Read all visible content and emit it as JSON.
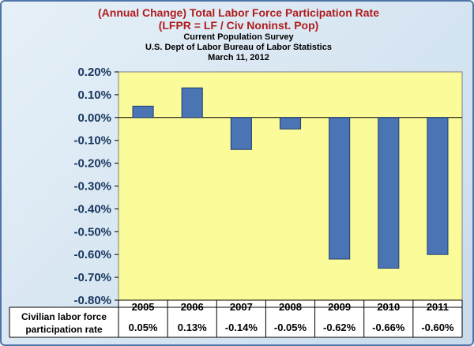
{
  "header": {
    "title_line1": "(Annual Change) Total Labor Force Participation Rate",
    "title_line2": "(LFPR = LF / Civ Noninst. Pop)",
    "subtitle_line1": "Current Population Survey",
    "subtitle_line2": "U.S. Dept of Labor Bureau of Labor Statistics",
    "subtitle_line3": "March 11, 2012"
  },
  "colors": {
    "plot_background": "#fbfb9a",
    "bar_fill": "#4a74b4",
    "bar_stroke": "#1f3f73",
    "title_red": "#b01c1c",
    "axis_label_blue": "#17375e"
  },
  "chart_data": {
    "type": "bar",
    "title": "(Annual Change) Total Labor Force Participation Rate",
    "categories": [
      "2005",
      "2006",
      "2007",
      "2008",
      "2009",
      "2010",
      "2011"
    ],
    "series": [
      {
        "name": "Civilian labor force participation rate",
        "values": [
          0.05,
          0.13,
          -0.14,
          -0.05,
          -0.62,
          -0.66,
          -0.6
        ],
        "value_labels": [
          "0.05%",
          "0.13%",
          "-0.14%",
          "-0.05%",
          "-0.62%",
          "-0.66%",
          "-0.60%"
        ]
      }
    ],
    "ylim": [
      -0.8,
      0.2
    ],
    "yticks": [
      0.2,
      0.1,
      0.0,
      -0.1,
      -0.2,
      -0.3,
      -0.4,
      -0.5,
      -0.6,
      -0.7,
      -0.8
    ],
    "ytick_labels": [
      "0.20%",
      "0.10%",
      "0.00%",
      "-0.10%",
      "-0.20%",
      "-0.30%",
      "-0.40%",
      "-0.50%",
      "-0.60%",
      "-0.70%",
      "-0.80%"
    ],
    "table_row_label_line1": "Civilian labor force",
    "table_row_label_line2": "participation rate",
    "grid": false,
    "legend": "data-table-below"
  }
}
